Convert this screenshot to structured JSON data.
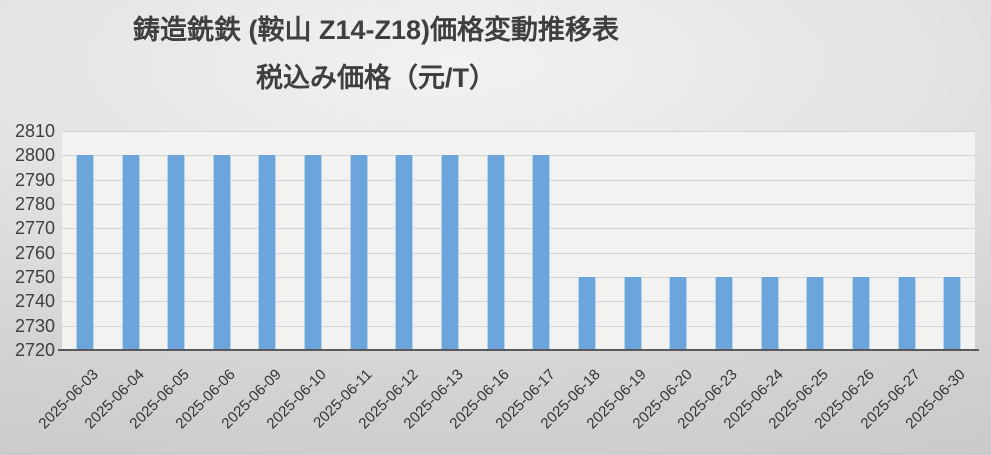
{
  "chart_data": {
    "type": "bar",
    "title": "鋳造銑鉄 (鞍山 Z14-Z18)価格変動推移表",
    "subtitle": "税込み価格（元/T）",
    "categories": [
      "2025-06-03",
      "2025-06-04",
      "2025-06-05",
      "2025-06-06",
      "2025-06-09",
      "2025-06-10",
      "2025-06-11",
      "2025-06-12",
      "2025-06-13",
      "2025-06-16",
      "2025-06-17",
      "2025-06-18",
      "2025-06-19",
      "2025-06-20",
      "2025-06-23",
      "2025-06-24",
      "2025-06-25",
      "2025-06-26",
      "2025-06-27",
      "2025-06-30"
    ],
    "values": [
      2800,
      2800,
      2800,
      2800,
      2800,
      2800,
      2800,
      2800,
      2800,
      2800,
      2800,
      2750,
      2750,
      2750,
      2750,
      2750,
      2750,
      2750,
      2750,
      2750
    ],
    "xlabel": "",
    "ylabel": "",
    "ylim": [
      2720,
      2810
    ],
    "yticks": [
      2720,
      2730,
      2740,
      2750,
      2760,
      2770,
      2780,
      2790,
      2800,
      2810
    ],
    "grid": true,
    "legend": false,
    "x_tick_rotation_deg": 45
  },
  "colors": {
    "bar": "#6CA5DB",
    "bar_edge": "#B6D2EC",
    "plot_fill": "#F2F2F1",
    "gridline": "#D4D4D4",
    "axis_line": "#595959",
    "title_text": "#3F3F3F",
    "tick_text": "#333333",
    "background_center": "#F2F2F2",
    "background_edge": "#C7C7C7"
  }
}
